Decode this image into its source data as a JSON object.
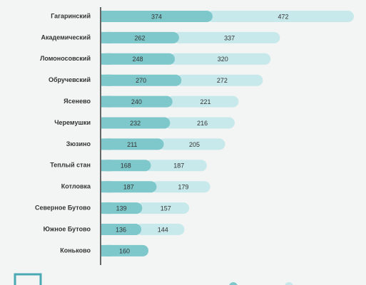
{
  "chart_data": {
    "type": "stacked-bar-horizontal",
    "categories": [
      "Гагаринский",
      "Академический",
      "Ломоносовский",
      "Обручевский",
      "Ясенево",
      "Черемушки",
      "Зюзино",
      "Теплый стан",
      "Котловка",
      "Северное Бутово",
      "Южное Бутово",
      "Коньково"
    ],
    "series": [
      {
        "color": "#7ec8cc",
        "values": [
          374,
          262,
          248,
          270,
          240,
          232,
          211,
          168,
          187,
          139,
          136,
          160
        ]
      },
      {
        "color": "#c8e9eb",
        "values": [
          472,
          337,
          320,
          272,
          221,
          216,
          205,
          187,
          179,
          157,
          144,
          null
        ]
      }
    ]
  }
}
